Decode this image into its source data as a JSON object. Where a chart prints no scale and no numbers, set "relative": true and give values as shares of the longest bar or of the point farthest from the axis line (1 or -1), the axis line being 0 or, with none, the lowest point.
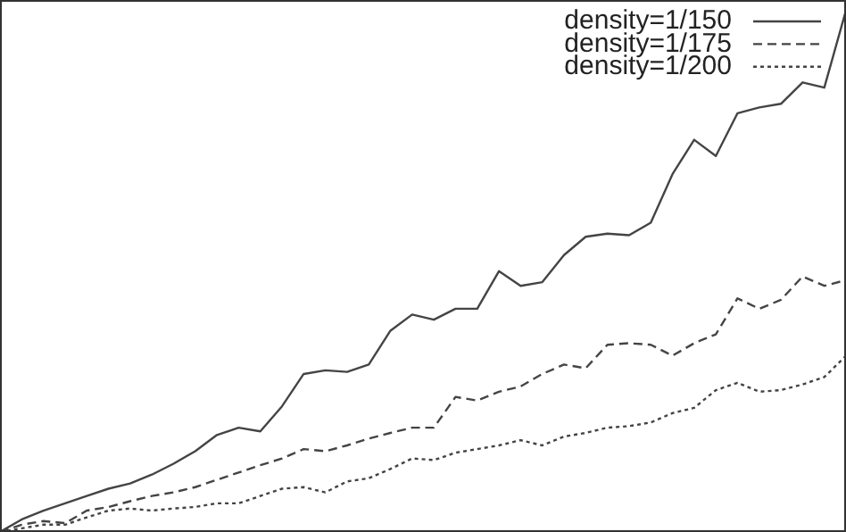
{
  "chart_data": {
    "type": "line",
    "relative": true,
    "legend": "top right",
    "marker": "none",
    "categories": [
      null,
      null,
      null,
      null,
      null,
      null,
      null,
      null,
      null,
      null,
      null,
      null,
      null,
      null,
      null,
      null,
      null,
      null,
      null,
      null,
      null,
      null,
      null,
      null,
      null,
      null,
      null,
      null,
      null,
      null,
      null,
      null,
      null,
      null,
      null,
      null,
      null,
      null,
      null,
      null
    ],
    "series": [
      {
        "name": "density=1/150",
        "color": "#444444",
        "line_style": "solid",
        "values": [
          0,
          0.024,
          0.041,
          0.055,
          0.069,
          0.083,
          0.093,
          0.11,
          0.131,
          0.155,
          0.186,
          0.2,
          0.193,
          0.241,
          0.303,
          0.31,
          0.307,
          0.321,
          0.386,
          0.417,
          0.407,
          0.428,
          0.428,
          0.5,
          0.472,
          0.479,
          0.531,
          0.566,
          0.572,
          0.569,
          0.593,
          0.686,
          0.752,
          0.721,
          0.803,
          0.814,
          0.821,
          0.862,
          0.852,
          1
        ]
      },
      {
        "name": "density=1/175",
        "color": "#444444",
        "line_style": "dashed",
        "values": [
          0,
          0.014,
          0.021,
          0.017,
          0.041,
          0.048,
          0.059,
          0.069,
          0.076,
          0.086,
          0.1,
          0.114,
          0.128,
          0.141,
          0.159,
          0.155,
          0.166,
          0.179,
          0.19,
          0.2,
          0.2,
          0.259,
          0.252,
          0.269,
          0.279,
          0.303,
          0.321,
          0.314,
          0.359,
          0.362,
          0.359,
          0.338,
          0.362,
          0.379,
          0.448,
          0.428,
          0.445,
          0.49,
          0.472,
          0.483
        ]
      },
      {
        "name": "density=1/200",
        "color": "#444444",
        "line_style": "dotted",
        "values": [
          0,
          0.007,
          0.014,
          0.014,
          0.028,
          0.041,
          0.045,
          0.041,
          0.045,
          0.048,
          0.055,
          0.055,
          0.069,
          0.083,
          0.086,
          0.076,
          0.097,
          0.103,
          0.121,
          0.141,
          0.138,
          0.152,
          0.159,
          0.166,
          0.176,
          0.166,
          0.183,
          0.19,
          0.2,
          0.203,
          0.21,
          0.228,
          0.238,
          0.272,
          0.286,
          0.269,
          0.272,
          0.283,
          0.297,
          0.338
        ]
      }
    ]
  }
}
